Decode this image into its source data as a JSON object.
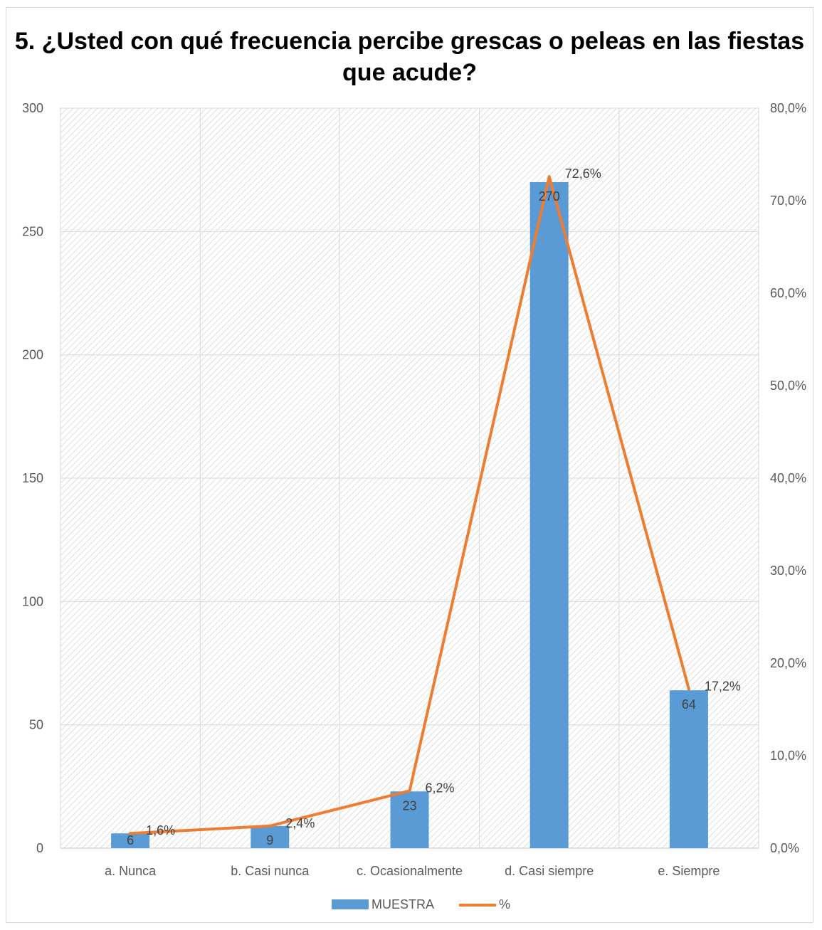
{
  "chart_data": {
    "type": "bar",
    "title": "5. ¿Usted con qué frecuencia percibe grescas o peleas en las fiestas que acude?",
    "categories": [
      "a. Nunca",
      "b. Casi nunca",
      "c. Ocasionalmente",
      "d. Casi siempre",
      "e. Siempre"
    ],
    "series": [
      {
        "name": "MUESTRA",
        "type": "bar",
        "axis": "left",
        "color": "#5b9bd5",
        "values": [
          6,
          9,
          23,
          270,
          64
        ],
        "labels": [
          "6",
          "9",
          "23",
          "270",
          "64"
        ]
      },
      {
        "name": "%",
        "type": "line",
        "axis": "right",
        "color": "#ed7d31",
        "values": [
          1.6,
          2.4,
          6.2,
          72.6,
          17.2
        ],
        "labels": [
          "1,6%",
          "2,4%",
          "6,2%",
          "72,6%",
          "17,2%"
        ]
      }
    ],
    "ylim": [
      0,
      300
    ],
    "yticks": [
      "0",
      "50",
      "100",
      "150",
      "200",
      "250",
      "300"
    ],
    "ylim_right": [
      0,
      80
    ],
    "yticks_right": [
      "0,0%",
      "10,0%",
      "20,0%",
      "30,0%",
      "40,0%",
      "50,0%",
      "60,0%",
      "70,0%",
      "80,0%"
    ],
    "grid": true,
    "legend_position": "bottom"
  }
}
